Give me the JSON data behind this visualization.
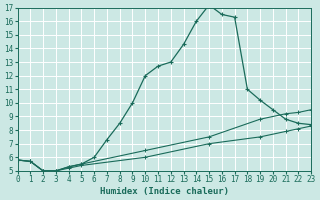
{
  "xlabel": "Humidex (Indice chaleur)",
  "bg_color": "#cce8e4",
  "line_color": "#1a6b5a",
  "grid_color": "#ffffff",
  "xmin": 0,
  "xmax": 23,
  "ymin": 5,
  "ymax": 17,
  "curve1_x": [
    0,
    1,
    2,
    3,
    4,
    5,
    6,
    7,
    8,
    9,
    10,
    11,
    12,
    13,
    14,
    15,
    16,
    17,
    18,
    19,
    20,
    21,
    22,
    23
  ],
  "curve1_y": [
    5.8,
    5.7,
    5.0,
    5.0,
    5.3,
    5.5,
    6.0,
    7.3,
    8.5,
    10.0,
    12.0,
    12.7,
    13.0,
    14.3,
    16.0,
    17.2,
    16.5,
    16.3,
    11.0,
    10.2,
    9.5,
    8.8,
    8.5,
    8.4
  ],
  "curve2_x": [
    0,
    1,
    2,
    3,
    4,
    5,
    10,
    15,
    19,
    21,
    22,
    23
  ],
  "curve2_y": [
    5.8,
    5.7,
    5.0,
    5.0,
    5.3,
    5.5,
    6.5,
    7.5,
    8.8,
    9.2,
    9.3,
    9.5
  ],
  "curve3_x": [
    0,
    1,
    2,
    3,
    4,
    5,
    10,
    15,
    19,
    21,
    22,
    23
  ],
  "curve3_y": [
    5.8,
    5.7,
    5.0,
    5.0,
    5.2,
    5.4,
    6.0,
    7.0,
    7.5,
    7.9,
    8.1,
    8.3
  ],
  "tick_fontsize": 5.5,
  "label_fontsize": 6.5
}
